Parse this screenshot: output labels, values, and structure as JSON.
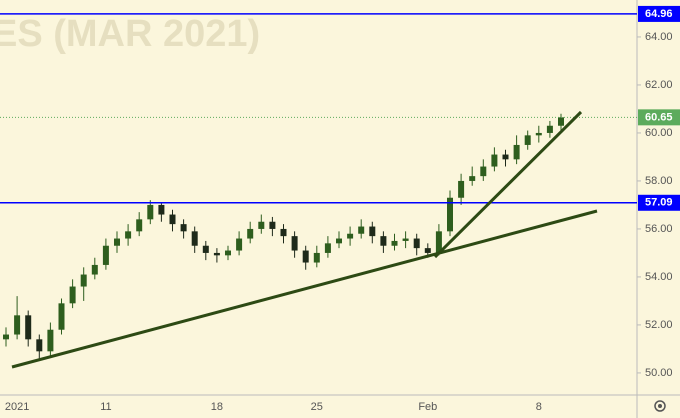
{
  "chart_data": {
    "type": "candlestick",
    "watermark": "ES (MAR 2021)",
    "categories": [
      null,
      "2021",
      null,
      null,
      null,
      null,
      null,
      null,
      null,
      "11",
      null,
      null,
      null,
      null,
      null,
      null,
      null,
      null,
      null,
      "18",
      null,
      null,
      null,
      null,
      null,
      null,
      null,
      null,
      "25",
      null,
      null,
      null,
      null,
      null,
      null,
      null,
      null,
      null,
      "Feb",
      null,
      null,
      null,
      null,
      null,
      null,
      null,
      null,
      null,
      "8",
      null,
      null
    ],
    "open": [
      51.4,
      51.6,
      52.4,
      51.4,
      50.9,
      51.8,
      52.9,
      53.6,
      54.1,
      54.5,
      55.3,
      55.6,
      55.9,
      56.4,
      57.0,
      56.6,
      56.2,
      55.9,
      55.3,
      55.0,
      54.9,
      55.1,
      55.6,
      56.0,
      56.3,
      56.0,
      55.7,
      55.1,
      54.6,
      55.0,
      55.4,
      55.6,
      55.8,
      56.1,
      55.7,
      55.3,
      55.5,
      55.6,
      55.2,
      55.0,
      55.9,
      57.3,
      58.0,
      58.2,
      58.6,
      59.1,
      58.9,
      59.5,
      59.9,
      60.0,
      60.3
    ],
    "high": [
      51.9,
      53.2,
      52.6,
      51.6,
      52.1,
      53.1,
      53.9,
      54.4,
      54.8,
      55.6,
      55.9,
      56.2,
      56.7,
      57.2,
      57.1,
      56.8,
      56.4,
      56.1,
      55.5,
      55.2,
      55.3,
      55.9,
      56.3,
      56.6,
      56.5,
      56.2,
      55.9,
      55.3,
      55.3,
      55.7,
      55.9,
      56.1,
      56.4,
      56.3,
      55.9,
      55.8,
      55.9,
      55.8,
      55.4,
      56.2,
      57.6,
      58.3,
      58.6,
      58.9,
      59.4,
      59.3,
      59.9,
      60.1,
      60.3,
      60.5,
      60.8
    ],
    "low": [
      51.1,
      51.4,
      51.1,
      50.5,
      50.7,
      51.6,
      52.7,
      53.0,
      53.9,
      54.3,
      55.0,
      55.3,
      55.7,
      56.2,
      56.3,
      55.9,
      55.6,
      55.0,
      54.7,
      54.6,
      54.7,
      54.9,
      55.4,
      55.8,
      55.7,
      55.4,
      54.8,
      54.3,
      54.4,
      54.8,
      55.2,
      55.3,
      55.6,
      55.4,
      55.0,
      55.1,
      55.2,
      54.9,
      54.8,
      54.9,
      55.7,
      57.0,
      57.8,
      58.0,
      58.4,
      58.6,
      58.7,
      59.3,
      59.6,
      59.8,
      60.1
    ],
    "close": [
      51.6,
      52.4,
      51.4,
      50.9,
      51.8,
      52.9,
      53.6,
      54.1,
      54.5,
      55.3,
      55.6,
      55.9,
      56.4,
      57.0,
      56.6,
      56.2,
      55.9,
      55.3,
      55.0,
      54.9,
      55.1,
      55.6,
      56.0,
      56.3,
      56.0,
      55.7,
      55.1,
      54.6,
      55.0,
      55.4,
      55.6,
      55.8,
      56.1,
      55.7,
      55.3,
      55.5,
      55.6,
      55.2,
      55.0,
      55.9,
      57.3,
      58.0,
      58.2,
      58.6,
      59.1,
      58.9,
      59.5,
      59.9,
      60.0,
      60.3,
      60.65
    ],
    "up_color": "#2e5e1e",
    "down_color": "#1e2a1a",
    "ylim": [
      49.08,
      65.54
    ],
    "yticks": [
      {
        "value": 50,
        "label": "50.00"
      },
      {
        "value": 52,
        "label": "52.00"
      },
      {
        "value": 54,
        "label": "54.00"
      },
      {
        "value": 56,
        "label": "56.00"
      },
      {
        "value": 58,
        "label": "58.00"
      },
      {
        "value": 60,
        "label": "60.00"
      },
      {
        "value": 62,
        "label": "62.00"
      },
      {
        "value": 64,
        "label": "64.00"
      }
    ],
    "hlines": [
      {
        "value": 64.96,
        "label": "64.96",
        "color": "#0000ff"
      },
      {
        "value": 57.09,
        "label": "57.09",
        "color": "#0000ff"
      }
    ],
    "last_price": {
      "value": 60.65,
      "label": "60.65",
      "color": "#5cab5c"
    }
  }
}
